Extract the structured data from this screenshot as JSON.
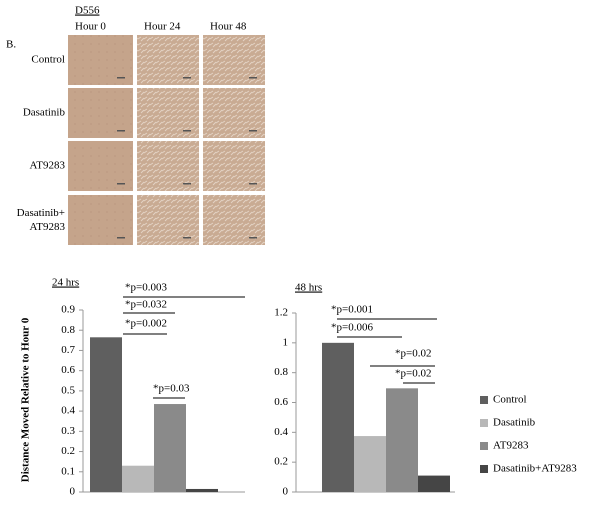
{
  "panel": {
    "cell_line": "D556",
    "label": "B.",
    "columns": [
      "Hour 0",
      "Hour 24",
      "Hour 48"
    ],
    "rows": [
      "Control",
      "Dasatinib",
      "AT9283",
      "Dasatinib+\nAT9283"
    ]
  },
  "legend": {
    "entries": [
      {
        "name": "Control",
        "color": "#5f5f5f"
      },
      {
        "name": "Dasatinib",
        "color": "#b8b8b8"
      },
      {
        "name": "AT9283",
        "color": "#8a8a8a"
      },
      {
        "name": "Dasatinib+AT9283",
        "color": "#454545"
      }
    ]
  },
  "chart_data": [
    {
      "type": "bar",
      "title": "24 hrs",
      "y_label": "Distance Moved Relative to Hour 0",
      "values": [
        0.765,
        0.13,
        0.435,
        0.015
      ],
      "ylim": [
        0,
        0.9
      ],
      "yticks": [
        0,
        0.1,
        0.2,
        0.3,
        0.4,
        0.5,
        0.6,
        0.7,
        0.8,
        0.9
      ],
      "annotations": [
        "*p=0.003",
        "*p=0.032",
        "*p=0.002",
        "*p=0.03"
      ]
    },
    {
      "type": "bar",
      "title": "48 hrs",
      "values": [
        1.0,
        0.375,
        0.695,
        0.11
      ],
      "ylim": [
        0,
        1.2
      ],
      "yticks": [
        0,
        0.2,
        0.4,
        0.6,
        0.8,
        1,
        1.2
      ],
      "annotations": [
        "*p=0.001",
        "*p=0.006",
        "*p=0.02",
        "*p=0.02"
      ]
    }
  ]
}
